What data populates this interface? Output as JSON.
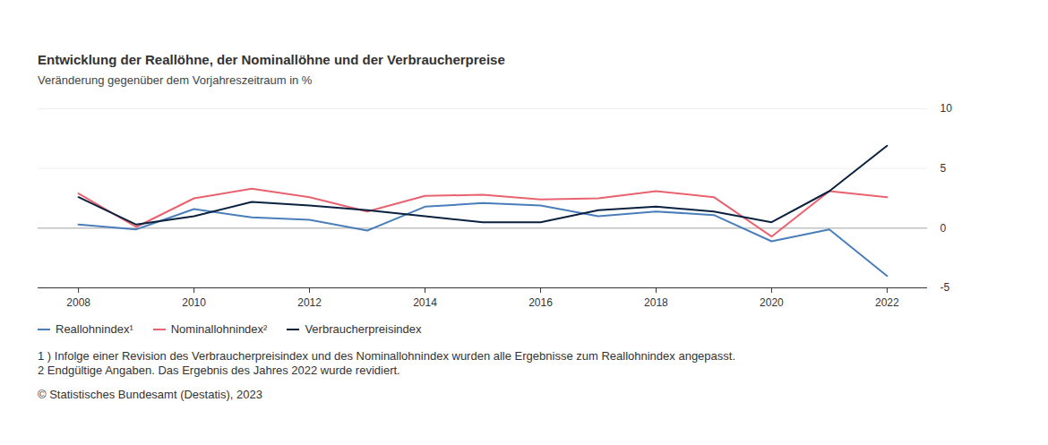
{
  "chart_data": {
    "type": "line",
    "title": "Entwicklung der Reallöhne, der Nominallöhne und der Verbraucherpreise",
    "subtitle": "Veränderung gegenüber dem Vorjahreszeitraum in %",
    "x": [
      2008,
      2009,
      2010,
      2011,
      2012,
      2013,
      2014,
      2015,
      2016,
      2017,
      2018,
      2019,
      2020,
      2021,
      2022
    ],
    "series": [
      {
        "name": "Reallohnindex¹",
        "color": "#4a7ebb",
        "values": [
          0.3,
          -0.1,
          1.6,
          0.9,
          0.7,
          -0.2,
          1.8,
          2.1,
          1.9,
          1.0,
          1.4,
          1.1,
          -1.1,
          -0.1,
          -4.0
        ]
      },
      {
        "name": "Nominallohnindex²",
        "color": "#e8636f",
        "values": [
          2.9,
          0.1,
          2.5,
          3.3,
          2.6,
          1.4,
          2.7,
          2.8,
          2.4,
          2.5,
          3.1,
          2.6,
          -0.7,
          3.1,
          2.6
        ]
      },
      {
        "name": "Verbraucherpreisindex",
        "color": "#0a2240",
        "values": [
          2.6,
          0.3,
          1.0,
          2.2,
          1.9,
          1.5,
          1.0,
          0.5,
          0.5,
          1.5,
          1.8,
          1.4,
          0.5,
          3.1,
          6.9
        ]
      }
    ],
    "xlim": [
      2007.3,
      2022.7
    ],
    "xticks": [
      2008,
      2010,
      2012,
      2014,
      2016,
      2018,
      2020,
      2022
    ],
    "ylim": [
      -5,
      10
    ],
    "yticks": [
      -5,
      0,
      5,
      10
    ],
    "grid": true,
    "legend": "bottom-left",
    "footnotes": [
      "1 ) Infolge einer Revision des Verbraucherpreisindex und des Nominallohnindex wurden alle Ergebnisse zum Reallohnindex angepasst.",
      "2 Endgültige Angaben. Das Ergebnis des Jahres 2022 wurde revidiert."
    ],
    "source": "© Statistisches Bundesamt (Destatis), 2023"
  }
}
